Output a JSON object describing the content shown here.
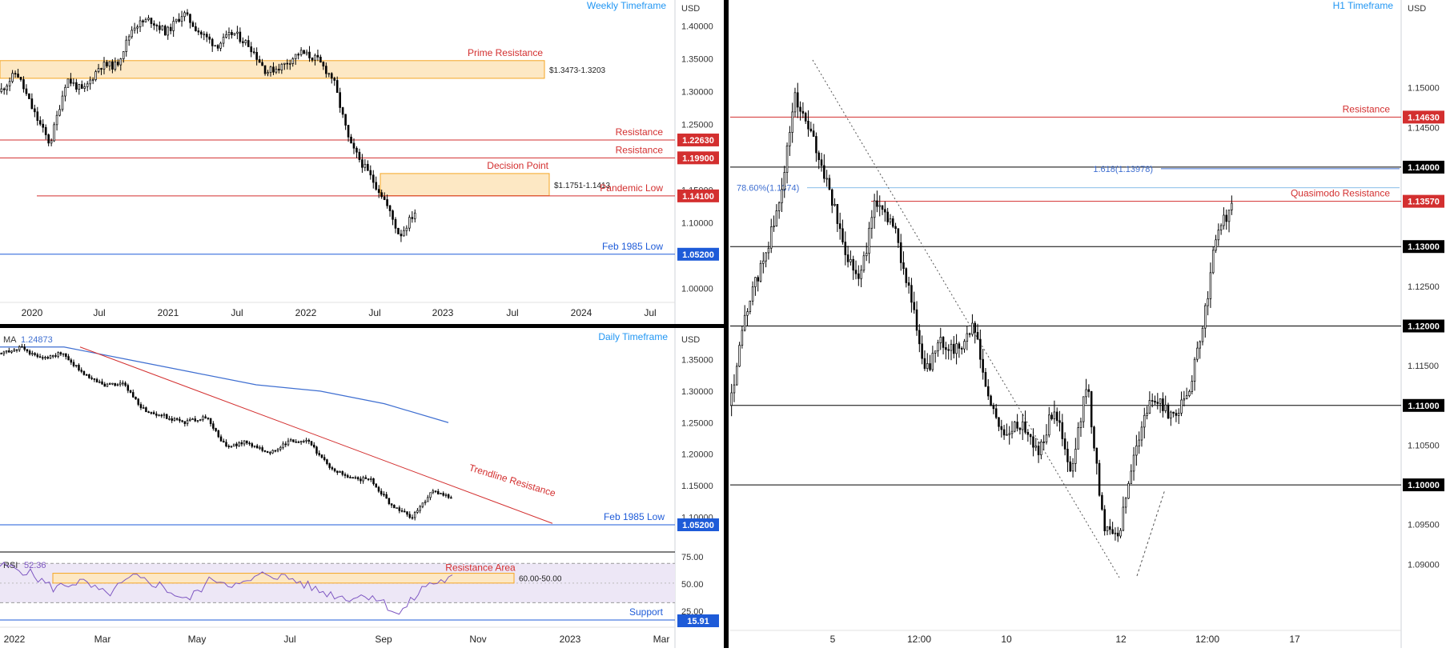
{
  "colors": {
    "up": "#ffffff",
    "down": "#000000",
    "resistance": "#d32f2f",
    "support": "#1e5bd8",
    "title": "#2196f3",
    "zone_fill": "#fde8c4",
    "zone_stroke": "#f5a623",
    "ma": "#3f6fd1",
    "rsi": "#7e57c2",
    "rsi_band": "#ede7f6"
  },
  "chart_data": [
    {
      "id": "weekly",
      "type": "candlestick",
      "title": "Weekly Timeframe",
      "ylabel": "USD",
      "ylim": [
        0.97,
        1.43
      ],
      "x_ticks": [
        "2020",
        "Jul",
        "2021",
        "Jul",
        "2022",
        "Jul",
        "2023",
        "Jul",
        "2024",
        "Jul"
      ],
      "y_ticks": [
        "1.40000",
        "1.35000",
        "1.30000",
        "1.25000",
        "1.20000",
        "1.15000",
        "1.10000",
        "1.05000",
        "1.00000"
      ],
      "y_tick_values": [
        1.4,
        1.35,
        1.3,
        1.25,
        1.2,
        1.15,
        1.1,
        1.05,
        1.0
      ],
      "close_path": [
        1.3,
        1.33,
        1.27,
        1.22,
        1.32,
        1.3,
        1.34,
        1.34,
        1.4,
        1.41,
        1.39,
        1.42,
        1.39,
        1.37,
        1.39,
        1.37,
        1.33,
        1.34,
        1.36,
        1.35,
        1.32,
        1.22,
        1.18,
        1.14,
        1.08,
        1.12
      ],
      "levels": [
        {
          "label": "Resistance",
          "value": 1.2263,
          "price_label": "1.22630",
          "kind": "resistance"
        },
        {
          "label": "Resistance",
          "value": 1.199,
          "price_label": "1.19900",
          "kind": "resistance"
        },
        {
          "label": "Pandemic Low",
          "value": 1.141,
          "price_label": "1.14100",
          "kind": "resistance"
        },
        {
          "label": "Feb 1985 Low",
          "value": 1.052,
          "price_label": "1.05200",
          "kind": "support"
        }
      ],
      "zones": [
        {
          "label": "Prime Resistance",
          "range_label": "$1.3473-1.3203",
          "low": 1.3203,
          "high": 1.3473
        },
        {
          "label": "Decision Point",
          "range_label": "$1.1751-1.1413",
          "low": 1.1413,
          "high": 1.1751
        }
      ]
    },
    {
      "id": "daily",
      "type": "candlestick",
      "title": "Daily Timeframe",
      "ylabel": "USD",
      "ylim": [
        1.07,
        1.39
      ],
      "x_ticks": [
        "2022",
        "Mar",
        "May",
        "Jul",
        "Sep",
        "Nov",
        "2023",
        "Mar"
      ],
      "y_ticks": [
        "1.35000",
        "1.30000",
        "1.25000",
        "1.20000",
        "1.15000",
        "1.10000"
      ],
      "y_tick_values": [
        1.35,
        1.3,
        1.25,
        1.2,
        1.15,
        1.1
      ],
      "indicator_label": "MA",
      "indicator_value": "1.24873",
      "close_path": [
        1.36,
        1.37,
        1.35,
        1.36,
        1.33,
        1.31,
        1.31,
        1.27,
        1.26,
        1.25,
        1.26,
        1.21,
        1.22,
        1.2,
        1.22,
        1.22,
        1.18,
        1.16,
        1.16,
        1.12,
        1.1,
        1.14,
        1.13
      ],
      "ma_path": [
        1.37,
        1.37,
        1.35,
        1.33,
        1.31,
        1.3,
        1.28,
        1.25
      ],
      "trendline": {
        "label": "Trendline Resistance",
        "from": 1.37,
        "to": 1.09
      },
      "levels": [
        {
          "label": "Feb 1985 Low",
          "value": 1.052,
          "price_label": "1.05200",
          "kind": "support"
        }
      ],
      "rsi": {
        "label": "RSI",
        "value_label": "52.36",
        "zone_label": "Resistance Area",
        "zone_range_label": "60.00-50.00",
        "zone_low": 50,
        "zone_high": 60,
        "support_label": "Support",
        "support_value": 15.91,
        "support_price_label": "15.91",
        "y_ticks": [
          "75.00",
          "50.00",
          "25.00"
        ],
        "path": [
          68,
          62,
          45,
          52,
          38,
          56,
          48,
          32,
          55,
          47,
          60,
          54,
          42,
          35,
          38,
          18,
          48,
          55
        ]
      }
    },
    {
      "id": "h1",
      "type": "candlestick",
      "title": "H1 Timeframe",
      "ylabel": "USD",
      "ylim": [
        1.085,
        1.155
      ],
      "x_ticks": [
        "5",
        "12:00",
        "10",
        "12",
        "12:00",
        "17"
      ],
      "y_ticks": [
        "1.15000",
        "1.14500",
        "1.12500",
        "1.11500",
        "1.10500",
        "1.09500",
        "1.09000"
      ],
      "y_tick_values": [
        1.15,
        1.145,
        1.125,
        1.115,
        1.105,
        1.095,
        1.09
      ],
      "close_path": [
        1.11,
        1.122,
        1.128,
        1.135,
        1.149,
        1.144,
        1.138,
        1.13,
        1.126,
        1.136,
        1.133,
        1.125,
        1.114,
        1.118,
        1.117,
        1.12,
        1.11,
        1.106,
        1.108,
        1.104,
        1.11,
        1.101,
        1.113,
        1.095,
        1.094,
        1.105,
        1.111,
        1.109,
        1.11,
        1.118,
        1.132,
        1.135
      ],
      "levels": [
        {
          "label": "Resistance",
          "value": 1.1463,
          "price_label": "1.14630",
          "kind": "resistance"
        },
        {
          "label": "",
          "value": 1.14,
          "price_label": "1.14000",
          "kind": "round"
        },
        {
          "label": "Quasimodo Resistance",
          "value": 1.1357,
          "price_label": "1.13570",
          "kind": "resistance"
        },
        {
          "label": "",
          "value": 1.13,
          "price_label": "1.13000",
          "kind": "round"
        },
        {
          "label": "",
          "value": 1.12,
          "price_label": "1.12000",
          "kind": "round"
        },
        {
          "label": "",
          "value": 1.11,
          "price_label": "1.11000",
          "kind": "round"
        },
        {
          "label": "",
          "value": 1.1,
          "price_label": "1.10000",
          "kind": "round"
        }
      ],
      "fib_labels": [
        {
          "text": "1.618(1.13978)",
          "value": 1.13978
        },
        {
          "text": "78.60%(1.1374)",
          "value": 1.1374
        }
      ]
    }
  ]
}
